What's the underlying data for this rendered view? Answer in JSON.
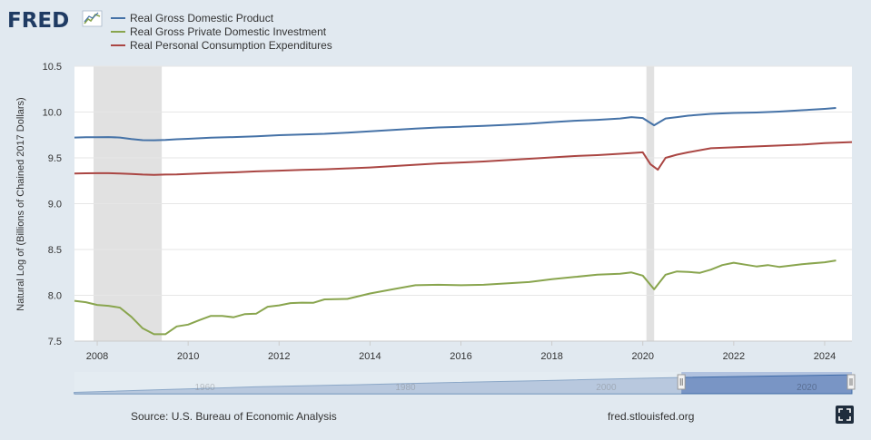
{
  "logo": {
    "text": "FRED"
  },
  "colors": {
    "background": "#e1e9f0",
    "plot_background": "#ffffff",
    "recession_shading": "#e1e1e1",
    "gdp": "#4572a7",
    "investment": "#89a54e",
    "consumption": "#aa4643",
    "navigator_fill": "#98aed0",
    "navigator_line": "#4572a7"
  },
  "chart_data": {
    "type": "line",
    "ylabel": "Natural Log of (Billions of Chained 2017 Dollars)",
    "xlabel": "",
    "ylim": [
      7.5,
      10.5
    ],
    "xlim": [
      2007.5,
      2024.6
    ],
    "yticks": [
      "7.5",
      "8.0",
      "8.5",
      "9.0",
      "9.5",
      "10.0",
      "10.5"
    ],
    "xticks": [
      "2008",
      "2010",
      "2012",
      "2014",
      "2016",
      "2018",
      "2020",
      "2022",
      "2024"
    ],
    "recessions": [
      [
        2007.92,
        2009.42
      ],
      [
        2020.08,
        2020.25
      ]
    ],
    "series": [
      {
        "name": "Real Gross Domestic Product",
        "color": "#4572a7",
        "x": [
          2007.5,
          2007.75,
          2008.0,
          2008.25,
          2008.5,
          2008.75,
          2009.0,
          2009.25,
          2009.5,
          2009.75,
          2010.0,
          2010.5,
          2011.0,
          2011.5,
          2012.0,
          2012.5,
          2013.0,
          2013.5,
          2014.0,
          2014.5,
          2015.0,
          2015.5,
          2016.0,
          2016.5,
          2017.0,
          2017.5,
          2018.0,
          2018.5,
          2019.0,
          2019.5,
          2019.75,
          2020.0,
          2020.25,
          2020.5,
          2020.75,
          2021.0,
          2021.5,
          2022.0,
          2022.5,
          2023.0,
          2023.5,
          2024.0,
          2024.25
        ],
        "y": [
          9.722,
          9.725,
          9.725,
          9.727,
          9.722,
          9.705,
          9.693,
          9.692,
          9.695,
          9.703,
          9.708,
          9.72,
          9.727,
          9.735,
          9.748,
          9.755,
          9.762,
          9.775,
          9.79,
          9.805,
          9.82,
          9.832,
          9.84,
          9.85,
          9.86,
          9.872,
          9.89,
          9.905,
          9.915,
          9.93,
          9.945,
          9.935,
          9.855,
          9.93,
          9.945,
          9.96,
          9.98,
          9.99,
          9.995,
          10.005,
          10.02,
          10.035,
          10.045
        ]
      },
      {
        "name": "Real Gross Private Domestic Investment",
        "color": "#89a54e",
        "x": [
          2007.5,
          2007.75,
          2008.0,
          2008.25,
          2008.5,
          2008.75,
          2009.0,
          2009.25,
          2009.5,
          2009.75,
          2010.0,
          2010.25,
          2010.5,
          2010.75,
          2011.0,
          2011.25,
          2011.5,
          2011.75,
          2012.0,
          2012.25,
          2012.5,
          2012.75,
          2013.0,
          2013.5,
          2014.0,
          2014.5,
          2015.0,
          2015.5,
          2016.0,
          2016.5,
          2017.0,
          2017.5,
          2018.0,
          2018.5,
          2019.0,
          2019.5,
          2019.75,
          2020.0,
          2020.25,
          2020.5,
          2020.75,
          2021.0,
          2021.25,
          2021.5,
          2021.75,
          2022.0,
          2022.25,
          2022.5,
          2022.75,
          2023.0,
          2023.5,
          2024.0,
          2024.25
        ],
        "y": [
          7.94,
          7.925,
          7.895,
          7.885,
          7.865,
          7.765,
          7.64,
          7.575,
          7.575,
          7.66,
          7.68,
          7.73,
          7.775,
          7.775,
          7.76,
          7.795,
          7.8,
          7.875,
          7.89,
          7.915,
          7.92,
          7.918,
          7.955,
          7.96,
          8.02,
          8.065,
          8.11,
          8.115,
          8.11,
          8.115,
          8.13,
          8.145,
          8.175,
          8.2,
          8.225,
          8.235,
          8.25,
          8.215,
          8.065,
          8.225,
          8.26,
          8.255,
          8.245,
          8.28,
          8.33,
          8.355,
          8.335,
          8.315,
          8.33,
          8.31,
          8.34,
          8.36,
          8.38
        ]
      },
      {
        "name": "Real Personal Consumption Expenditures",
        "color": "#aa4643",
        "x": [
          2007.5,
          2007.75,
          2008.0,
          2008.25,
          2008.5,
          2008.75,
          2009.0,
          2009.25,
          2009.5,
          2009.75,
          2010.0,
          2010.5,
          2011.0,
          2011.5,
          2012.0,
          2012.5,
          2013.0,
          2013.5,
          2014.0,
          2014.5,
          2015.0,
          2015.5,
          2016.0,
          2016.5,
          2017.0,
          2017.5,
          2018.0,
          2018.5,
          2019.0,
          2019.5,
          2020.0,
          2020.17,
          2020.33,
          2020.5,
          2020.75,
          2021.0,
          2021.5,
          2022.0,
          2022.5,
          2023.0,
          2023.5,
          2024.0,
          2024.6
        ],
        "y": [
          9.33,
          9.332,
          9.333,
          9.333,
          9.33,
          9.325,
          9.318,
          9.315,
          9.318,
          9.32,
          9.325,
          9.335,
          9.342,
          9.352,
          9.36,
          9.368,
          9.375,
          9.385,
          9.395,
          9.41,
          9.425,
          9.44,
          9.45,
          9.46,
          9.475,
          9.49,
          9.505,
          9.52,
          9.53,
          9.545,
          9.56,
          9.43,
          9.37,
          9.5,
          9.535,
          9.56,
          9.605,
          9.615,
          9.625,
          9.635,
          9.645,
          9.66,
          9.672
        ]
      }
    ]
  },
  "navigator": {
    "labels": [
      "1960",
      "1980",
      "2000",
      "2020"
    ],
    "x": [
      1947,
      1955,
      1965,
      1975,
      1985,
      1995,
      2005,
      2015,
      2024.5
    ],
    "y": [
      7.5,
      7.85,
      8.3,
      8.6,
      8.95,
      9.25,
      9.6,
      9.85,
      10.05
    ],
    "xlim": [
      1947,
      2024.5
    ],
    "selected_range": [
      2007.5,
      2024.6
    ]
  },
  "footer": {
    "source": "Source: U.S. Bureau of Economic Analysis",
    "url": "fred.stlouisfed.org"
  }
}
